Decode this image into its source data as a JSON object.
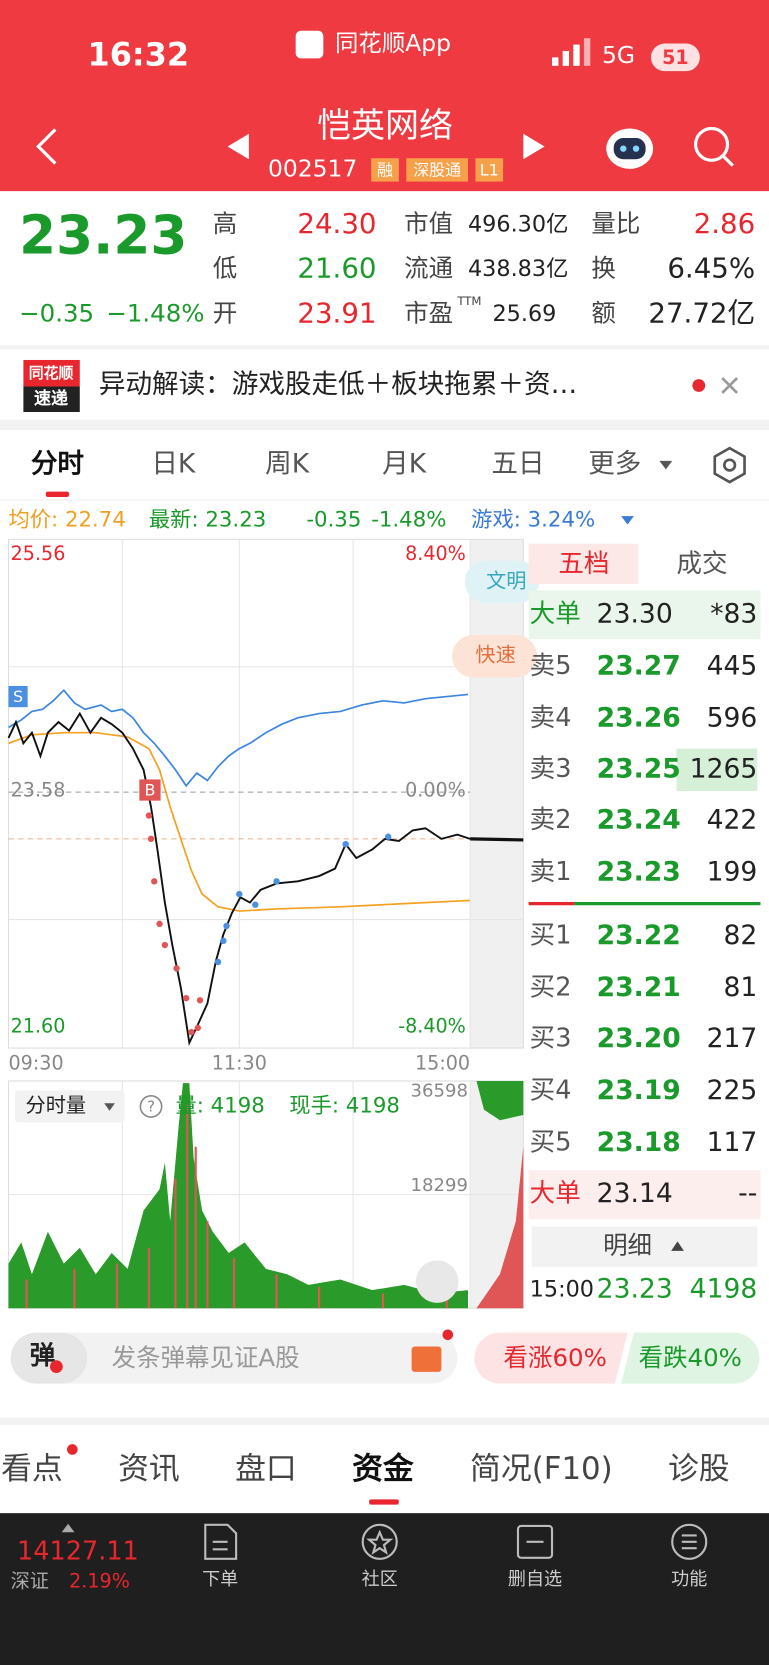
{
  "status": {
    "time": "16:32",
    "app": "同花顺App",
    "network": "5G",
    "battery": "51"
  },
  "header": {
    "title": "恺英网络",
    "code": "002517",
    "badges": [
      "融",
      "深股通",
      "L1"
    ]
  },
  "quote": {
    "price": "23.23",
    "change": "−0.35",
    "change_pct": "−1.48%",
    "fields": [
      {
        "label": "高",
        "value": "24.30"
      },
      {
        "label": "低",
        "value": "21.60"
      },
      {
        "label": "开",
        "value": "23.91"
      },
      {
        "label": "市值",
        "value": "496.30亿"
      },
      {
        "label": "流通",
        "value": "438.83亿"
      },
      {
        "label": "市盈",
        "sup": "TTM",
        "value": "25.69"
      },
      {
        "label": "量比",
        "value": "2.86"
      },
      {
        "label": "换",
        "value": "6.45%"
      },
      {
        "label": "额",
        "value": "27.72亿"
      }
    ]
  },
  "news": {
    "logo_top": "同花顺",
    "logo_bottom": "速递",
    "text": "异动解读：游戏股走低＋板块拖累＋资…"
  },
  "chart_tabs": [
    "分时",
    "日K",
    "周K",
    "月K",
    "五日",
    "更多"
  ],
  "chart_info": {
    "avg": "均价: 22.74",
    "latest": "最新: 23.23",
    "change": "-0.35",
    "change_pct": "-1.48%",
    "sector": "游戏: 3.24%"
  },
  "chart": {
    "high": "25.56",
    "high_pct": "8.40%",
    "base": "23.58",
    "base_pct": "0.00%",
    "low": "21.60",
    "low_pct": "-8.40%",
    "times": [
      "09:30",
      "11:30",
      "15:00"
    ],
    "sell_tag": "S",
    "buy_tag": "B",
    "bubbles": [
      "文明",
      "快速"
    ]
  },
  "volume": {
    "selector": "分时量",
    "help": "?",
    "volume": "量: 4198",
    "hand": "现手: 4198",
    "max": "36598",
    "mid": "18299"
  },
  "order_book": {
    "tabs": [
      "五档",
      "成交"
    ],
    "rows": [
      {
        "label": "大单",
        "price": "23.30",
        "volume": "*83"
      },
      {
        "label": "卖5",
        "price": "23.27",
        "volume": "445"
      },
      {
        "label": "卖4",
        "price": "23.26",
        "volume": "596"
      },
      {
        "label": "卖3",
        "price": "23.25",
        "volume": "1265"
      },
      {
        "label": "卖2",
        "price": "23.24",
        "volume": "422"
      },
      {
        "label": "卖1",
        "price": "23.23",
        "volume": "199"
      },
      {
        "label": "买1",
        "price": "23.22",
        "volume": "82"
      },
      {
        "label": "买2",
        "price": "23.21",
        "volume": "81"
      },
      {
        "label": "买3",
        "price": "23.20",
        "volume": "217"
      },
      {
        "label": "买4",
        "price": "23.19",
        "volume": "225"
      },
      {
        "label": "买5",
        "price": "23.18",
        "volume": "117"
      },
      {
        "label": "大单",
        "price": "23.14",
        "volume": "--"
      }
    ],
    "detail": "明细",
    "trade": {
      "time": "15:00",
      "price": "23.23",
      "volume": "4198"
    }
  },
  "danmaku": {
    "icon": "弹",
    "placeholder": "发条弹幕见证A股",
    "up": "看涨60%",
    "down": "看跌40%"
  },
  "section_tabs": [
    "看点",
    "资讯",
    "盘口",
    "资金",
    "简况(F10)",
    "诊股"
  ],
  "bottom_nav": {
    "index_value": "14127.11",
    "index_name": "深证",
    "index_pct": "2.19%",
    "items": [
      "下单",
      "社区",
      "删自选",
      "功能"
    ]
  }
}
